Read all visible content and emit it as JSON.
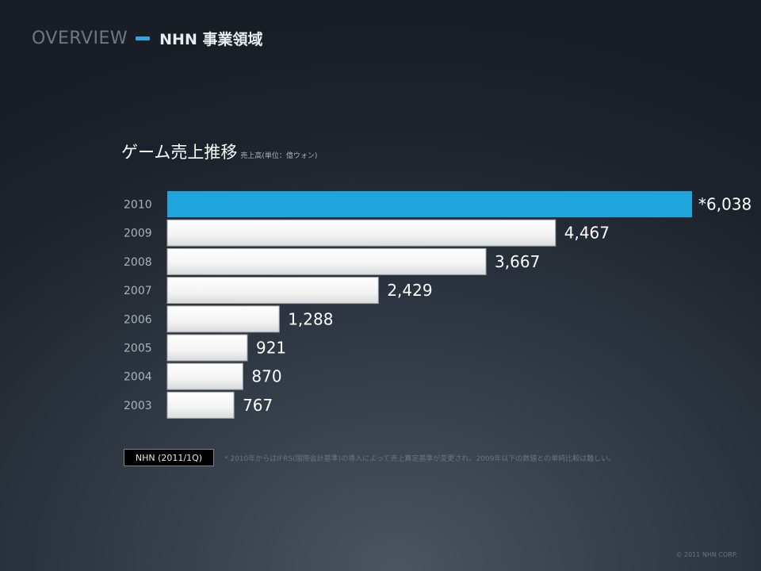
{
  "header": {
    "overview": "OVERVIEW",
    "title": "NHN 事業領域"
  },
  "chart_data": {
    "type": "bar",
    "orientation": "horizontal",
    "title": "ゲーム売上推移",
    "subtitle": "売上高(単位：億ウォン)",
    "categories": [
      "2010",
      "2009",
      "2008",
      "2007",
      "2006",
      "2005",
      "2004",
      "2003"
    ],
    "values": [
      6038,
      4467,
      3667,
      2429,
      1288,
      921,
      870,
      767
    ],
    "value_labels": [
      "*6,038",
      "4,467",
      "3,667",
      "2,429",
      "1,288",
      "921",
      "870",
      "767"
    ],
    "highlight_index": 0,
    "colors": {
      "highlight": "#1ea6dc",
      "default": "#f4f4f4"
    },
    "grid": false,
    "legend": "none"
  },
  "badge": "NHN (2011/1Q)",
  "footnote": "* 2010年からはIFRS(国際会計基準)の導入によって売上算定基準が変更され、2009年以下の数値との単純比較は難しい。",
  "copyright": "© 2011 NHN CORP."
}
